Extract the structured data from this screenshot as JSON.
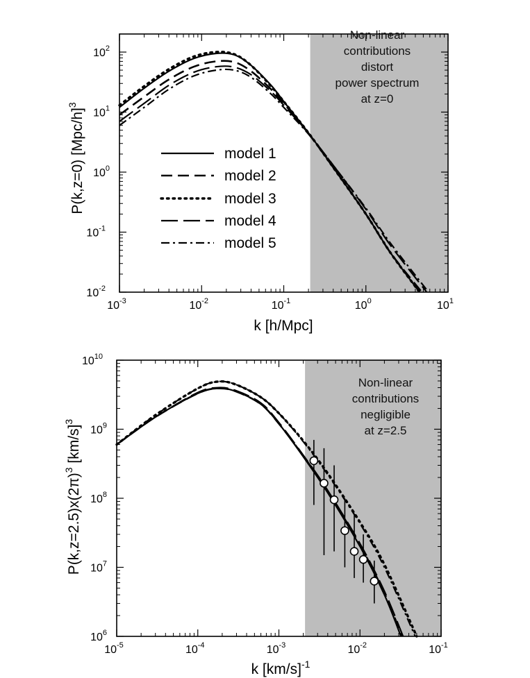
{
  "chart_data": [
    {
      "type": "line",
      "xlabel": "k [h/Mpc]",
      "ylabel": "P(k,z=0) [Mpc/h]",
      "ylabel_sup": "3",
      "xscale": "log",
      "yscale": "log",
      "xlim": [
        0.001,
        10
      ],
      "ylim": [
        0.01,
        200
      ],
      "x_ticks": [
        {
          "base": "10",
          "exp": "-3"
        },
        {
          "base": "10",
          "exp": "-2"
        },
        {
          "base": "10",
          "exp": "-1"
        },
        {
          "base": "10",
          "exp": "0"
        },
        {
          "base": "10",
          "exp": "1"
        }
      ],
      "y_ticks": [
        {
          "base": "10",
          "exp": "-2"
        },
        {
          "base": "10",
          "exp": "-1"
        },
        {
          "base": "10",
          "exp": "0"
        },
        {
          "base": "10",
          "exp": "1"
        },
        {
          "base": "10",
          "exp": "2"
        }
      ],
      "shaded_region": {
        "x_from": 0.21,
        "x_to": 10,
        "color": "#bdbdbd"
      },
      "annotation": [
        "Non-linear",
        "contributions",
        "distort",
        "power spectrum",
        "at z=0"
      ],
      "legend": {
        "placement": "center-left"
      },
      "series": [
        {
          "name": "model 1",
          "style": "solid",
          "x": [
            0.001,
            0.002,
            0.004,
            0.008,
            0.015,
            0.025,
            0.04,
            0.07,
            0.1,
            0.2,
            0.4,
            1,
            2,
            4.5
          ],
          "y": [
            12,
            25,
            48,
            78,
            95,
            90,
            60,
            28,
            15,
            4.5,
            1.2,
            0.2,
            0.045,
            0.01
          ]
        },
        {
          "name": "model 2",
          "style": "dashed",
          "x": [
            0.001,
            0.002,
            0.004,
            0.008,
            0.015,
            0.025,
            0.04,
            0.07,
            0.1,
            0.2,
            0.4,
            1,
            2,
            4.8
          ],
          "y": [
            9,
            18,
            35,
            57,
            70,
            68,
            48,
            24,
            14,
            4.4,
            1.2,
            0.2,
            0.045,
            0.01
          ]
        },
        {
          "name": "model 3",
          "style": "dotted",
          "x": [
            0.001,
            0.002,
            0.004,
            0.008,
            0.015,
            0.025,
            0.04,
            0.07,
            0.1,
            0.2,
            0.4,
            1,
            2,
            4.5
          ],
          "y": [
            13,
            27,
            52,
            84,
            100,
            92,
            60,
            27,
            15,
            4.5,
            1.2,
            0.2,
            0.045,
            0.01
          ]
        },
        {
          "name": "model 4",
          "style": "longdash",
          "x": [
            0.001,
            0.002,
            0.004,
            0.008,
            0.015,
            0.025,
            0.04,
            0.07,
            0.1,
            0.2,
            0.4,
            1,
            2,
            5.5
          ],
          "y": [
            7,
            14,
            28,
            46,
            57,
            56,
            42,
            22,
            13,
            4.4,
            1.3,
            0.24,
            0.06,
            0.01
          ]
        },
        {
          "name": "model 5",
          "style": "dashdot",
          "x": [
            0.001,
            0.002,
            0.004,
            0.008,
            0.015,
            0.025,
            0.04,
            0.07,
            0.1,
            0.2,
            0.4,
            1,
            2,
            5.8
          ],
          "y": [
            6,
            12,
            24,
            40,
            50,
            50,
            38,
            20,
            12,
            4.3,
            1.3,
            0.25,
            0.065,
            0.01
          ]
        }
      ]
    },
    {
      "type": "line",
      "xlabel": "k [km/s]",
      "xlabel_sup": "-1",
      "ylabel": "P(k,z=2.5)x(2π)",
      "ylabel_sup": "3",
      "ylabel_tail": " [km/s]",
      "ylabel_sup2": "3",
      "xscale": "log",
      "yscale": "log",
      "xlim": [
        1e-05,
        0.1
      ],
      "ylim": [
        1000000,
        10000000000
      ],
      "x_ticks": [
        {
          "base": "10",
          "exp": "-5"
        },
        {
          "base": "10",
          "exp": "-4"
        },
        {
          "base": "10",
          "exp": "-3"
        },
        {
          "base": "10",
          "exp": "-2"
        },
        {
          "base": "10",
          "exp": "-1"
        }
      ],
      "y_ticks": [
        {
          "base": "10",
          "exp": "6"
        },
        {
          "base": "10",
          "exp": "7"
        },
        {
          "base": "10",
          "exp": "8"
        },
        {
          "base": "10",
          "exp": "9"
        },
        {
          "base": "10",
          "exp": "10"
        }
      ],
      "shaded_region": {
        "x_from": 0.0021,
        "x_to": 0.1,
        "color": "#bdbdbd"
      },
      "annotation": [
        "Non-linear",
        "contributions",
        "negligible",
        "at z=2.5"
      ],
      "series": [
        {
          "name": "model 1",
          "style": "solid",
          "x": [
            1e-05,
            3e-05,
            0.0001,
            0.00018,
            0.0003,
            0.0006,
            0.001,
            0.002,
            0.004,
            0.01,
            0.02,
            0.032
          ],
          "y": [
            600000000,
            1500000000,
            3300000000,
            3900000000,
            3500000000,
            2300000000,
            1200000000,
            400000000,
            120000000,
            20000000,
            4000000,
            1000000
          ]
        },
        {
          "name": "model 2",
          "style": "dashed",
          "x": [
            1e-05,
            3e-05,
            0.0001,
            0.00018,
            0.0003,
            0.0006,
            0.001,
            0.002,
            0.004,
            0.01,
            0.02,
            0.033
          ],
          "y": [
            600000000,
            1500000000,
            3300000000,
            3900000000,
            3500000000,
            2300000000,
            1200000000,
            410000000,
            125000000,
            21000000,
            4200000,
            1000000
          ]
        },
        {
          "name": "model 3",
          "style": "dotted",
          "x": [
            1e-05,
            3e-05,
            0.0001,
            0.00018,
            0.0003,
            0.0006,
            0.001,
            0.002,
            0.004,
            0.01,
            0.02,
            0.05
          ],
          "y": [
            600000000,
            1600000000,
            3900000000,
            4900000000,
            4400000000,
            2900000000,
            1700000000,
            680000000,
            230000000,
            45000000,
            11000000,
            1000000
          ]
        },
        {
          "name": "model 4",
          "style": "longdash",
          "x": [
            1e-05,
            3e-05,
            0.0001,
            0.00018,
            0.0003,
            0.0006,
            0.001,
            0.002,
            0.004,
            0.01,
            0.02,
            0.034
          ],
          "y": [
            600000000,
            1500000000,
            3400000000,
            4000000000,
            3600000000,
            2400000000,
            1250000000,
            420000000,
            130000000,
            22000000,
            4500000,
            1000000
          ]
        },
        {
          "name": "model 5",
          "style": "dashdot",
          "x": [
            1e-05,
            3e-05,
            0.0001,
            0.00018,
            0.0003,
            0.0006,
            0.001,
            0.002,
            0.004,
            0.01,
            0.02,
            0.048
          ],
          "y": [
            600000000,
            1600000000,
            3900000000,
            4900000000,
            4400000000,
            2900000000,
            1700000000,
            660000000,
            220000000,
            43000000,
            10000000,
            1000000
          ]
        }
      ],
      "data_points": {
        "x": [
          0.0027,
          0.0036,
          0.0048,
          0.0065,
          0.0085,
          0.011,
          0.015
        ],
        "y": [
          350000000,
          165000000,
          95000000,
          34000000,
          17000000,
          13000000,
          6300000
        ],
        "err_lo": [
          80000000,
          15000000,
          17000000,
          10000000,
          7000000,
          6000000,
          3000000
        ],
        "err_hi": [
          700000000,
          530000000,
          300000000,
          100000000,
          60000000,
          30000000,
          12500000
        ]
      }
    }
  ]
}
